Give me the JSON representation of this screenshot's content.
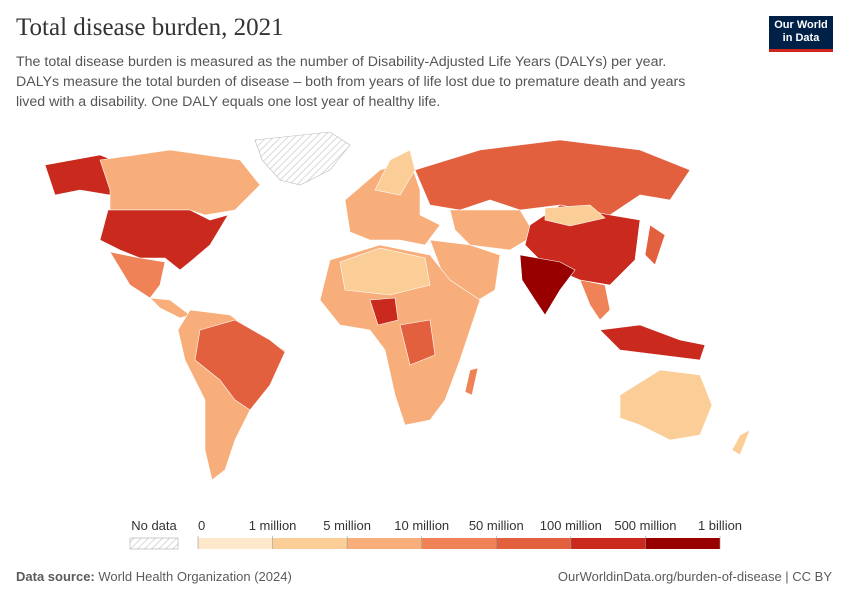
{
  "header": {
    "title": "Total disease burden, 2021",
    "subtitle_lines": [
      "The total disease burden is measured as the number of Disability-Adjusted Life Years (DALYs) per year.",
      "DALYs measure the total burden of disease – both from years of life lost due to premature death and years",
      "lived with a disability. One DALY equals one lost year of healthy life."
    ],
    "logo_lines": [
      "Our World",
      "in Data"
    ]
  },
  "legend": {
    "no_data": "No data",
    "ticks": [
      0,
      {
        "value": 1000000,
        "label": "1 million"
      },
      {
        "value": 5000000,
        "label": "5 million"
      },
      {
        "value": 10000000,
        "label": "10 million"
      },
      {
        "value": 50000000,
        "label": "50 million"
      },
      {
        "value": 100000000,
        "label": "100 million"
      },
      {
        "value": 500000000,
        "label": "500 million"
      },
      {
        "value": 1000000000,
        "label": "1 billion"
      }
    ],
    "colors": [
      "#fde8cc",
      "#fbcd97",
      "#f8ae7a",
      "#ef8257",
      "#e3603f",
      "#c92a1d",
      "#980000"
    ]
  },
  "footer": {
    "source_label": "Data source:",
    "source": "World Health Organization (2024)",
    "url": "OurWorldinData.org/burden-of-disease | CC BY"
  }
}
